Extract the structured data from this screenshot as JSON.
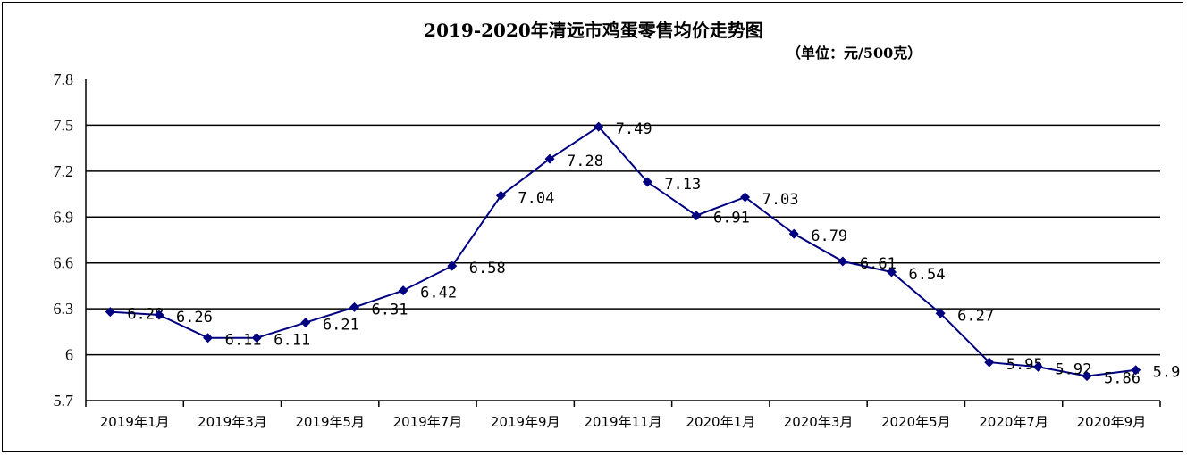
{
  "chart_data": {
    "type": "line",
    "title": "2019-2020年清远市鸡蛋零售均价走势图",
    "subtitle": "（单位：元/500克）",
    "ylim": [
      5.7,
      7.8
    ],
    "y_ticks": [
      "7.8",
      "7.5",
      "7.2",
      "6.9",
      "6.6",
      "6.3",
      "6",
      "5.7"
    ],
    "x_tick_labels": [
      "2019年1月",
      "2019年3月",
      "2019年5月",
      "2019年7月",
      "2019年9月",
      "2019年11月",
      "2020年1月",
      "2020年3月",
      "2020年5月",
      "2020年7月",
      "2020年9月"
    ],
    "grid": "horizontal",
    "series": [
      {
        "color": "#000080",
        "marker": "diamond",
        "values": [
          6.28,
          6.26,
          6.11,
          6.11,
          6.21,
          6.31,
          6.42,
          6.58,
          7.04,
          7.28,
          7.49,
          7.13,
          6.91,
          7.03,
          6.79,
          6.61,
          6.54,
          6.27,
          5.95,
          5.92,
          5.86,
          5.9
        ],
        "labels": [
          "6.28",
          "6.26",
          "6.11",
          "6.11",
          "6.21",
          "6.31",
          "6.42",
          "6.58",
          "7.04",
          "7.28",
          "7.49",
          "7.13",
          "6.91",
          "7.03",
          "6.79",
          "6.61",
          "6.54",
          "6.27",
          "5.95",
          "5.92",
          "5.86",
          "5.9"
        ]
      }
    ]
  }
}
